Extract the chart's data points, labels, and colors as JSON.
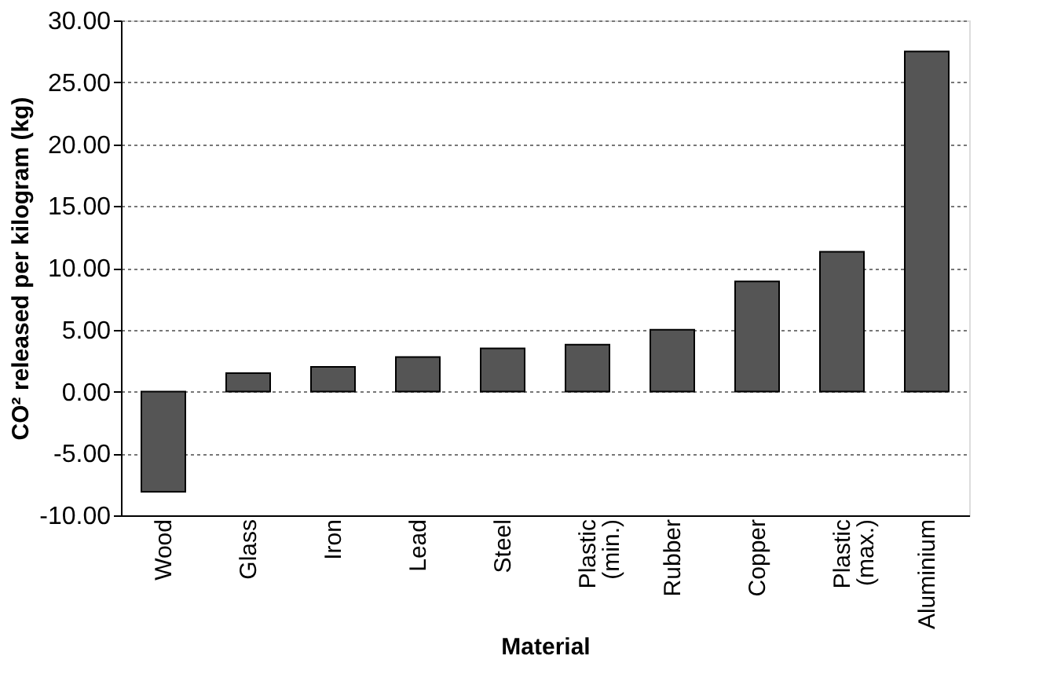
{
  "chart_data": {
    "type": "bar",
    "xlabel": "Material",
    "ylabel": "CO² released per kilogram (kg)",
    "categories": [
      "Wood",
      "Glass",
      "Iron",
      "Lead",
      "Steel",
      "Plastic (min.)",
      "Rubber",
      "Copper",
      "Plastic (max.)",
      "Aluminium"
    ],
    "values": [
      -8.1,
      1.5,
      2.0,
      2.8,
      3.5,
      3.8,
      5.0,
      8.9,
      11.3,
      27.5
    ],
    "color": "#555555",
    "ylim": [
      -10,
      30
    ],
    "yticks": [
      {
        "value": -10,
        "label": "-10.00"
      },
      {
        "value": -5,
        "label": "-5.00"
      },
      {
        "value": 0,
        "label": "0.00"
      },
      {
        "value": 5,
        "label": "5.00"
      },
      {
        "value": 10,
        "label": "10.00"
      },
      {
        "value": 15,
        "label": "15.00"
      },
      {
        "value": 20,
        "label": "20.00"
      },
      {
        "value": 25,
        "label": "25.00"
      },
      {
        "value": 30,
        "label": "30.00"
      }
    ],
    "grid": "y"
  }
}
